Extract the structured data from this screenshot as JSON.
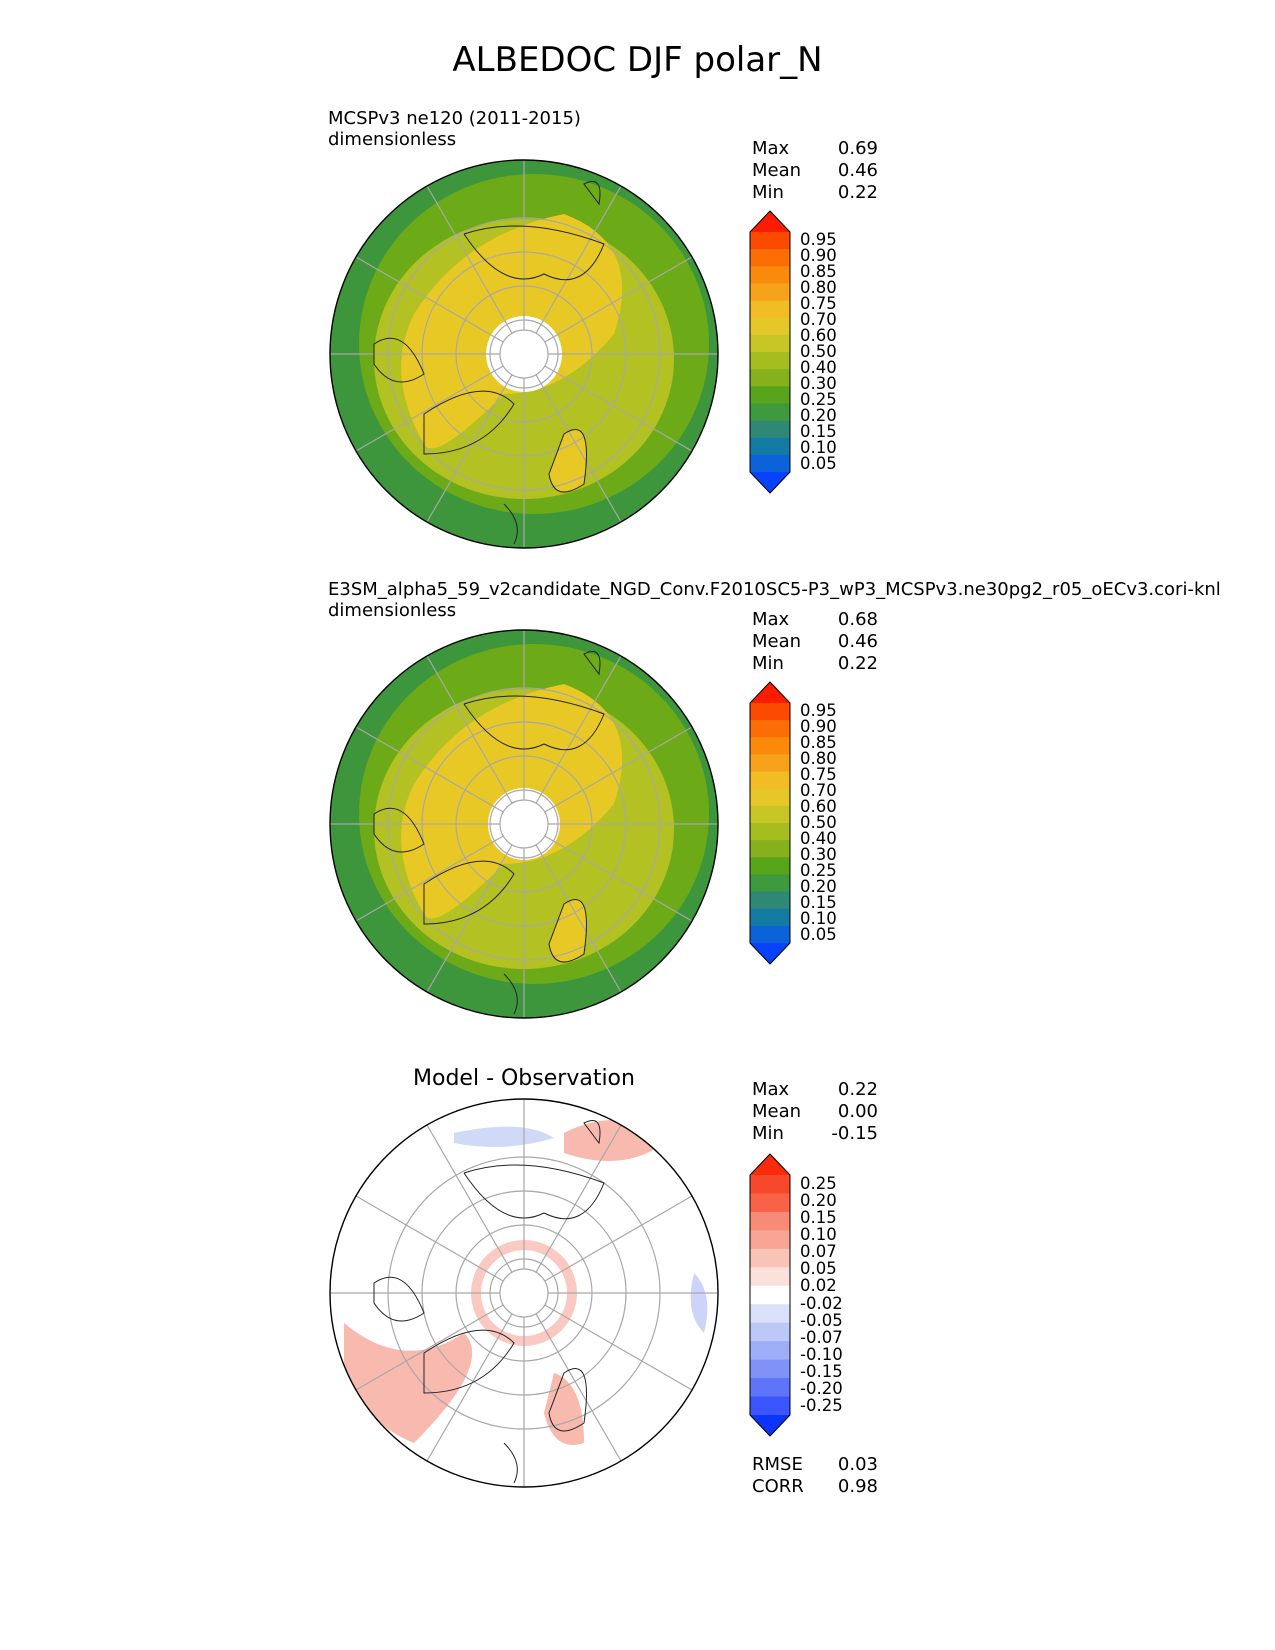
{
  "figure": {
    "title": "ALBEDOC DJF polar_N"
  },
  "chart_data": [
    {
      "type": "heatmap",
      "projection": "north polar stereographic",
      "title": "",
      "subtitle_left": "MCSPv3 ne120 (2011-2015)",
      "units": "dimensionless",
      "stats": [
        {
          "label": "Max",
          "value": "0.69"
        },
        {
          "label": "Mean",
          "value": "0.46"
        },
        {
          "label": "Min",
          "value": "0.22"
        }
      ],
      "colorbar": {
        "levels": [
          "0.95",
          "0.90",
          "0.85",
          "0.80",
          "0.75",
          "0.70",
          "0.60",
          "0.50",
          "0.40",
          "0.30",
          "0.25",
          "0.20",
          "0.15",
          "0.10",
          "0.05"
        ],
        "colors": [
          "#fd1c01",
          "#fd4a02",
          "#fd6d05",
          "#fa8a0a",
          "#f7a21b",
          "#f2bc25",
          "#e6c72a",
          "#c8c526",
          "#a6bd20",
          "#86b11c",
          "#58a51b",
          "#3f9a3f",
          "#2e8875",
          "#137ba1",
          "#0b62d9",
          "#0742fb"
        ],
        "extend": "both"
      },
      "field_colors": {
        "pole": "#ffffff",
        "ice": "#e8c825",
        "mid": "#b3c122",
        "low": "#6daa18",
        "ocean": "#3e963c"
      }
    },
    {
      "type": "heatmap",
      "projection": "north polar stereographic",
      "title": "",
      "subtitle_left": "E3SM_alpha5_59_v2candidate_NGD_Conv.F2010SC5-P3_wP3_MCSPv3.ne30pg2_r05_oECv3.cori-knl",
      "units": "dimensionless",
      "stats": [
        {
          "label": "Max",
          "value": "0.68"
        },
        {
          "label": "Mean",
          "value": "0.46"
        },
        {
          "label": "Min",
          "value": "0.22"
        }
      ],
      "colorbar": {
        "levels": [
          "0.95",
          "0.90",
          "0.85",
          "0.80",
          "0.75",
          "0.70",
          "0.60",
          "0.50",
          "0.40",
          "0.30",
          "0.25",
          "0.20",
          "0.15",
          "0.10",
          "0.05"
        ],
        "colors": [
          "#fd1c01",
          "#fd4a02",
          "#fd6d05",
          "#fa8a0a",
          "#f7a21b",
          "#f2bc25",
          "#e6c72a",
          "#c8c526",
          "#a6bd20",
          "#86b11c",
          "#58a51b",
          "#3f9a3f",
          "#2e8875",
          "#137ba1",
          "#0b62d9",
          "#0742fb"
        ],
        "extend": "both"
      },
      "field_colors": {
        "pole": "#ffffff",
        "ice": "#e8c825",
        "mid": "#b3c122",
        "low": "#6daa18",
        "ocean": "#3e963c"
      }
    },
    {
      "type": "heatmap",
      "projection": "north polar stereographic",
      "title": "Model - Observation",
      "subtitle_left": "",
      "units": "",
      "stats": [
        {
          "label": "Max",
          "value": "0.22"
        },
        {
          "label": "Mean",
          "value": "0.00"
        },
        {
          "label": "Min",
          "value": "-0.15"
        }
      ],
      "colorbar": {
        "levels": [
          "0.25",
          "0.20",
          "0.15",
          "0.10",
          "0.07",
          "0.05",
          "0.02",
          "-0.02",
          "-0.05",
          "-0.07",
          "-0.10",
          "-0.15",
          "-0.20",
          "-0.25"
        ],
        "colors": [
          "#fb2a0a",
          "#f8482b",
          "#f86347",
          "#f88b76",
          "#f8a595",
          "#f9c3b8",
          "#fbe1dc",
          "#ffffff",
          "#dbe0fb",
          "#bcc8f8",
          "#9dadf7",
          "#7e92f8",
          "#5f74f9",
          "#3a55fb",
          "#0b35fd"
        ],
        "extend": "both"
      },
      "metrics": [
        {
          "label": "RMSE",
          "value": "0.03"
        },
        {
          "label": "CORR",
          "value": "0.98"
        }
      ],
      "field_colors": {
        "pole": "#ffffff",
        "pos": "#f6a79a",
        "neg": "#c6d0f8"
      }
    }
  ]
}
